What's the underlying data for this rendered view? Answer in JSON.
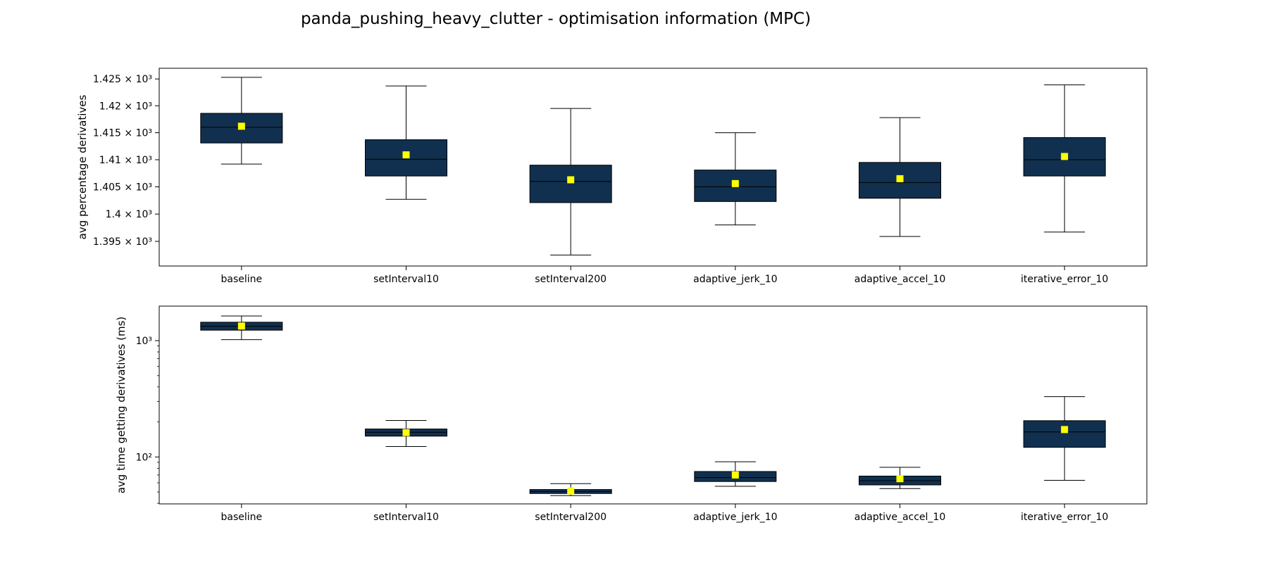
{
  "figure_title": "panda_pushing_heavy_clutter - optimisation information (MPC)",
  "colors": {
    "box_fill": "#11304f",
    "mean_marker": "#ffff00",
    "line": "#000000"
  },
  "chart_data": [
    {
      "type": "box",
      "ylabel": "avg percentage derivatives",
      "yscale": "log",
      "ylim": [
        1390.5,
        1427.0
      ],
      "yticks": [
        {
          "value": 1395,
          "label": "1.395 × 10³"
        },
        {
          "value": 1400,
          "label": "1.4 × 10³"
        },
        {
          "value": 1405,
          "label": "1.405 × 10³"
        },
        {
          "value": 1410,
          "label": "1.41 × 10³"
        },
        {
          "value": 1415,
          "label": "1.415 × 10³"
        },
        {
          "value": 1420,
          "label": "1.42 × 10³"
        },
        {
          "value": 1425,
          "label": "1.425 × 10³"
        }
      ],
      "categories": [
        "baseline",
        "setInterval10",
        "setInterval200",
        "adaptive_jerk_10",
        "adaptive_accel_10",
        "iterative_error_10"
      ],
      "boxes": [
        {
          "whisker_low": 1409.2,
          "q1": 1413.1,
          "median": 1416.0,
          "q3": 1418.6,
          "whisker_high": 1425.3,
          "mean": 1416.2
        },
        {
          "whisker_low": 1402.7,
          "q1": 1407.0,
          "median": 1410.1,
          "q3": 1413.7,
          "whisker_high": 1423.7,
          "mean": 1410.9
        },
        {
          "whisker_low": 1392.5,
          "q1": 1402.1,
          "median": 1406.0,
          "q3": 1409.0,
          "whisker_high": 1419.5,
          "mean": 1406.3
        },
        {
          "whisker_low": 1398.0,
          "q1": 1402.3,
          "median": 1405.0,
          "q3": 1408.1,
          "whisker_high": 1415.0,
          "mean": 1405.6
        },
        {
          "whisker_low": 1395.9,
          "q1": 1402.9,
          "median": 1405.8,
          "q3": 1409.5,
          "whisker_high": 1417.8,
          "mean": 1406.5
        },
        {
          "whisker_low": 1396.7,
          "q1": 1407.0,
          "median": 1410.0,
          "q3": 1414.1,
          "whisker_high": 1423.9,
          "mean": 1410.6
        }
      ]
    },
    {
      "type": "box",
      "ylabel": "avg time getting derivatives (ms)",
      "yscale": "log",
      "ylim": [
        39.5,
        1980
      ],
      "yticks": [
        {
          "value": 100,
          "label": "10²"
        },
        {
          "value": 1000,
          "label": "10³"
        }
      ],
      "categories": [
        "baseline",
        "setInterval10",
        "setInterval200",
        "adaptive_jerk_10",
        "adaptive_accel_10",
        "iterative_error_10"
      ],
      "boxes": [
        {
          "whisker_low": 1020,
          "q1": 1230,
          "median": 1330,
          "q3": 1440,
          "whisker_high": 1630,
          "mean": 1335
        },
        {
          "whisker_low": 123,
          "q1": 151,
          "median": 163,
          "q3": 174,
          "whisker_high": 206,
          "mean": 162
        },
        {
          "whisker_low": 46.5,
          "q1": 48.5,
          "median": 50.5,
          "q3": 52.5,
          "whisker_high": 59.0,
          "mean": 51.0
        },
        {
          "whisker_low": 56.0,
          "q1": 61.5,
          "median": 66.5,
          "q3": 75.0,
          "whisker_high": 91.0,
          "mean": 70.0
        },
        {
          "whisker_low": 53.5,
          "q1": 57.5,
          "median": 62.5,
          "q3": 68.5,
          "whisker_high": 81.5,
          "mean": 65.0
        },
        {
          "whisker_low": 63.0,
          "q1": 121,
          "median": 164,
          "q3": 205,
          "whisker_high": 330,
          "mean": 172
        }
      ]
    }
  ]
}
